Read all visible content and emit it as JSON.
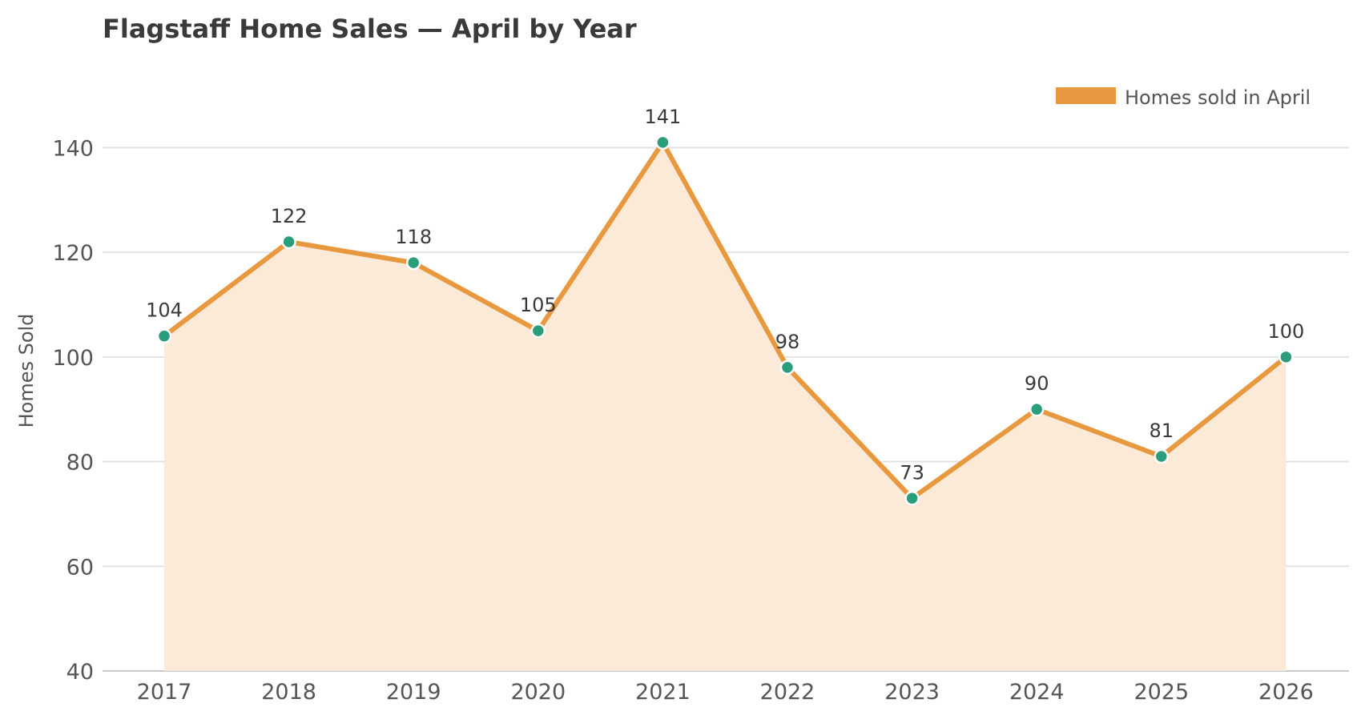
{
  "chart_data": {
    "type": "area",
    "title": "Flagstaff Home Sales — April by Year",
    "xlabel": "",
    "ylabel": "Homes Sold",
    "categories": [
      "2017",
      "2018",
      "2019",
      "2020",
      "2021",
      "2022",
      "2023",
      "2024",
      "2025",
      "2026"
    ],
    "series": [
      {
        "name": "Homes sold in April",
        "values": [
          104,
          122,
          118,
          105,
          141,
          98,
          73,
          90,
          81,
          100
        ]
      }
    ],
    "ylim": [
      40,
      150
    ],
    "yticks": [
      40,
      60,
      80,
      100,
      120,
      140
    ],
    "grid": "horizontal",
    "legend_position": "top-right",
    "colors": {
      "line": "#e8983e",
      "fill": "#fbead7",
      "marker": "#2a9d7a",
      "marker_edge": "#ffffff",
      "grid": "#e3e3e3",
      "axis": "#c8c8c8"
    }
  }
}
